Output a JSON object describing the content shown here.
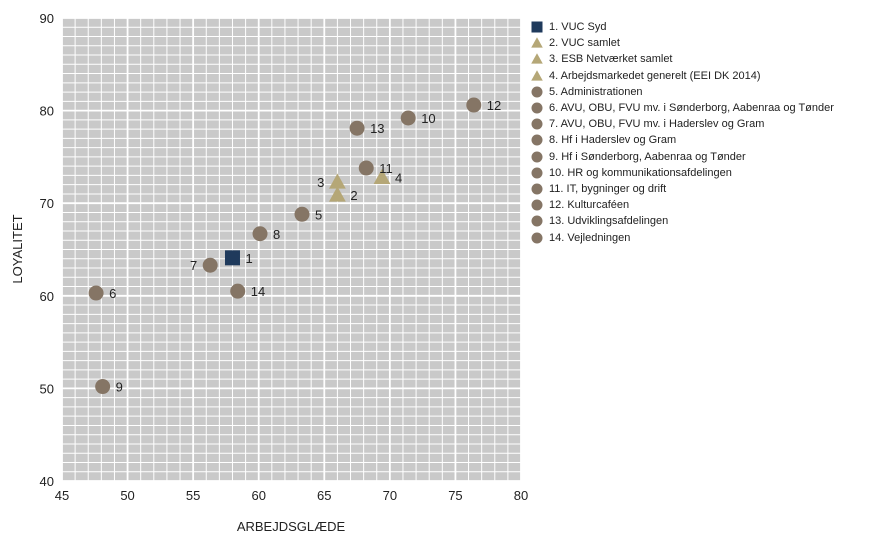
{
  "chart_data": {
    "type": "scatter",
    "title": "",
    "xlabel": "ARBEJDSGLÆDE",
    "ylabel": "LOYALITET",
    "xlim": [
      45,
      80
    ],
    "ylim": [
      40,
      90
    ],
    "xticks": [
      "45",
      "50",
      "55",
      "60",
      "65",
      "70",
      "75",
      "80"
    ],
    "yticks": [
      "40",
      "50",
      "60",
      "70",
      "80",
      "90"
    ],
    "grid": true,
    "legend_position": "right",
    "colors": {
      "square": "#1f3a5c",
      "triangle": "#b5a777",
      "circle": "#857565",
      "grid_bg": "#c9c9c9"
    },
    "points": [
      {
        "label": "1",
        "legend": "1. VUC Syd",
        "marker": "square",
        "x": 58.0,
        "y": 64.1
      },
      {
        "label": "2",
        "legend": "2. VUC samlet",
        "marker": "triangle",
        "x": 66.0,
        "y": 70.9
      },
      {
        "label": "3",
        "legend": "3. ESB Netværket samlet",
        "marker": "triangle",
        "x": 66.0,
        "y": 72.3
      },
      {
        "label": "4",
        "legend": "4. Arbejdsmarkedet generelt (EEI DK 2014)",
        "marker": "triangle",
        "x": 69.4,
        "y": 72.8
      },
      {
        "label": "5",
        "legend": "5. Administrationen",
        "marker": "circle",
        "x": 63.3,
        "y": 68.8
      },
      {
        "label": "6",
        "legend": "6. AVU, OBU, FVU mv. i  Sønderborg, Aabenraa og Tønder",
        "marker": "circle",
        "x": 47.6,
        "y": 60.3
      },
      {
        "label": "7",
        "legend": "7. AVU, OBU, FVU mv. i Haderslev og Gram",
        "marker": "circle",
        "x": 56.3,
        "y": 63.3
      },
      {
        "label": "8",
        "legend": "8. Hf i Haderslev og Gram",
        "marker": "circle",
        "x": 60.1,
        "y": 66.7
      },
      {
        "label": "9",
        "legend": "9. Hf i Sønderborg, Aabenraa og Tønder",
        "marker": "circle",
        "x": 48.1,
        "y": 50.2
      },
      {
        "label": "10",
        "legend": "10. HR og kommunikationsafdelingen",
        "marker": "circle",
        "x": 71.4,
        "y": 79.2
      },
      {
        "label": "11",
        "legend": "11. IT, bygninger og drift",
        "marker": "circle",
        "x": 68.2,
        "y": 73.8
      },
      {
        "label": "12",
        "legend": "12. Kulturcaféen",
        "marker": "circle",
        "x": 76.4,
        "y": 80.6
      },
      {
        "label": "13",
        "legend": "13. Udviklingsafdelingen",
        "marker": "circle",
        "x": 67.5,
        "y": 78.1
      },
      {
        "label": "14",
        "legend": "14. Vejledningen",
        "marker": "circle",
        "x": 58.4,
        "y": 60.5
      }
    ]
  }
}
